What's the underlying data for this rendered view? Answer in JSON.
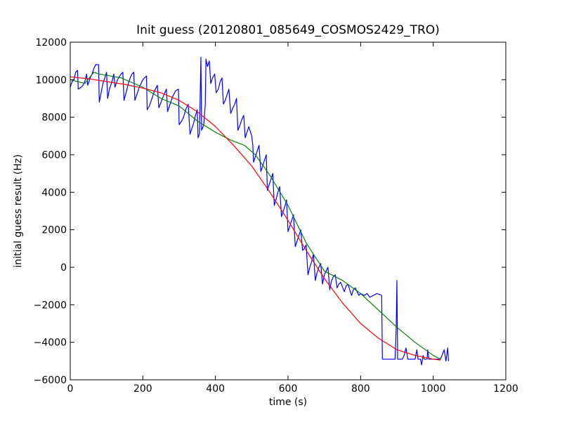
{
  "chart_data": {
    "type": "line",
    "title": "Init guess (20120801_085649_COSMOS2429_TRO)",
    "xlabel": "time (s)",
    "ylabel": "initial guess result (Hz)",
    "xlim": [
      0,
      1200
    ],
    "ylim": [
      -6000,
      12000
    ],
    "xticks": [
      0,
      200,
      400,
      600,
      800,
      1000,
      1200
    ],
    "yticks": [
      -6000,
      -4000,
      -2000,
      0,
      2000,
      4000,
      6000,
      8000,
      10000,
      12000
    ],
    "grid": false,
    "colors": {
      "blue": "#0000ff",
      "green": "#008000",
      "red": "#ff0000"
    },
    "series": [
      {
        "color": "#0000ff",
        "points": [
          [
            0,
            9600
          ],
          [
            5,
            9900
          ],
          [
            10,
            10000
          ],
          [
            15,
            10400
          ],
          [
            20,
            10500
          ],
          [
            22,
            9500
          ],
          [
            30,
            9600
          ],
          [
            35,
            9700
          ],
          [
            40,
            9900
          ],
          [
            45,
            10300
          ],
          [
            48,
            9700
          ],
          [
            55,
            10100
          ],
          [
            60,
            10300
          ],
          [
            65,
            10600
          ],
          [
            70,
            10800
          ],
          [
            78,
            10800
          ],
          [
            80,
            8800
          ],
          [
            85,
            9300
          ],
          [
            90,
            9800
          ],
          [
            95,
            10100
          ],
          [
            100,
            10400
          ],
          [
            103,
            9000
          ],
          [
            108,
            9500
          ],
          [
            115,
            9900
          ],
          [
            120,
            10300
          ],
          [
            123,
            9600
          ],
          [
            130,
            10000
          ],
          [
            140,
            10300
          ],
          [
            145,
            10400
          ],
          [
            148,
            8900
          ],
          [
            155,
            9400
          ],
          [
            160,
            9800
          ],
          [
            165,
            10100
          ],
          [
            170,
            10300
          ],
          [
            175,
            10400
          ],
          [
            178,
            8900
          ],
          [
            185,
            9300
          ],
          [
            190,
            9600
          ],
          [
            195,
            9800
          ],
          [
            200,
            10000
          ],
          [
            210,
            10200
          ],
          [
            212,
            8400
          ],
          [
            218,
            8600
          ],
          [
            225,
            9000
          ],
          [
            232,
            9400
          ],
          [
            240,
            9700
          ],
          [
            244,
            8500
          ],
          [
            250,
            8800
          ],
          [
            258,
            9200
          ],
          [
            265,
            9500
          ],
          [
            268,
            8300
          ],
          [
            275,
            8700
          ],
          [
            282,
            9100
          ],
          [
            290,
            9400
          ],
          [
            298,
            9500
          ],
          [
            300,
            7600
          ],
          [
            307,
            7800
          ],
          [
            312,
            8000
          ],
          [
            318,
            8400
          ],
          [
            325,
            8700
          ],
          [
            330,
            7100
          ],
          [
            335,
            7400
          ],
          [
            340,
            7700
          ],
          [
            345,
            8100
          ],
          [
            350,
            8400
          ],
          [
            352,
            6900
          ],
          [
            356,
            7100
          ],
          [
            360,
            11200
          ],
          [
            362,
            7300
          ],
          [
            368,
            7600
          ],
          [
            372,
            8700
          ],
          [
            374,
            11100
          ],
          [
            378,
            10700
          ],
          [
            383,
            11000
          ],
          [
            387,
            9800
          ],
          [
            392,
            10100
          ],
          [
            398,
            10300
          ],
          [
            402,
            9300
          ],
          [
            408,
            9500
          ],
          [
            413,
            9900
          ],
          [
            418,
            10100
          ],
          [
            422,
            8700
          ],
          [
            427,
            8900
          ],
          [
            432,
            9200
          ],
          [
            437,
            9500
          ],
          [
            442,
            8200
          ],
          [
            448,
            8500
          ],
          [
            453,
            8700
          ],
          [
            458,
            9000
          ],
          [
            462,
            7300
          ],
          [
            468,
            7600
          ],
          [
            473,
            7900
          ],
          [
            478,
            8100
          ],
          [
            482,
            6900
          ],
          [
            487,
            7200
          ],
          [
            492,
            7500
          ],
          [
            500,
            7000
          ],
          [
            503,
            6500
          ],
          [
            505,
            5600
          ],
          [
            510,
            5900
          ],
          [
            515,
            6200
          ],
          [
            520,
            6500
          ],
          [
            525,
            5100
          ],
          [
            530,
            5400
          ],
          [
            535,
            5700
          ],
          [
            540,
            6000
          ],
          [
            543,
            4100
          ],
          [
            548,
            4400
          ],
          [
            553,
            4700
          ],
          [
            558,
            5000
          ],
          [
            562,
            3300
          ],
          [
            567,
            3600
          ],
          [
            572,
            4000
          ],
          [
            577,
            4300
          ],
          [
            582,
            2700
          ],
          [
            587,
            3000
          ],
          [
            592,
            3300
          ],
          [
            596,
            3600
          ],
          [
            600,
            1900
          ],
          [
            605,
            2200
          ],
          [
            610,
            2500
          ],
          [
            615,
            2800
          ],
          [
            620,
            1100
          ],
          [
            625,
            1400
          ],
          [
            630,
            1700
          ],
          [
            635,
            2000
          ],
          [
            640,
            900
          ],
          [
            645,
            1000
          ],
          [
            650,
            1200
          ],
          [
            655,
            -400
          ],
          [
            660,
            0
          ],
          [
            665,
            300
          ],
          [
            670,
            700
          ],
          [
            675,
            -700
          ],
          [
            680,
            -300
          ],
          [
            685,
            0
          ],
          [
            690,
            200
          ],
          [
            695,
            -900
          ],
          [
            700,
            -400
          ],
          [
            705,
            -200
          ],
          [
            710,
            0
          ],
          [
            715,
            -1200
          ],
          [
            720,
            -700
          ],
          [
            725,
            -500
          ],
          [
            730,
            -400
          ],
          [
            735,
            -1100
          ],
          [
            740,
            -900
          ],
          [
            745,
            -800
          ],
          [
            755,
            -1300
          ],
          [
            760,
            -1000
          ],
          [
            765,
            -900
          ],
          [
            775,
            -1500
          ],
          [
            780,
            -1200
          ],
          [
            785,
            -1100
          ],
          [
            795,
            -1500
          ],
          [
            800,
            -1400
          ],
          [
            810,
            -1500
          ],
          [
            818,
            -1400
          ],
          [
            825,
            -1600
          ],
          [
            835,
            -1500
          ],
          [
            845,
            -1400
          ],
          [
            858,
            -1500
          ],
          [
            860,
            -4900
          ],
          [
            880,
            -4900
          ],
          [
            895,
            -4900
          ],
          [
            898,
            -3200
          ],
          [
            900,
            -700
          ],
          [
            902,
            -4900
          ],
          [
            915,
            -4900
          ],
          [
            920,
            -4700
          ],
          [
            925,
            -4300
          ],
          [
            930,
            -4900
          ],
          [
            950,
            -4900
          ],
          [
            955,
            -4400
          ],
          [
            958,
            -4900
          ],
          [
            965,
            -4900
          ],
          [
            968,
            -5200
          ],
          [
            972,
            -4700
          ],
          [
            975,
            -4900
          ],
          [
            983,
            -4900
          ],
          [
            985,
            -4400
          ],
          [
            988,
            -4900
          ],
          [
            995,
            -4900
          ],
          [
            1000,
            -4900
          ],
          [
            1010,
            -4900
          ],
          [
            1020,
            -4900
          ],
          [
            1030,
            -4400
          ],
          [
            1035,
            -5000
          ],
          [
            1040,
            -4300
          ],
          [
            1042,
            -5000
          ]
        ]
      },
      {
        "color": "#008000",
        "points": [
          [
            0,
            10000
          ],
          [
            20,
            9900
          ],
          [
            40,
            9800
          ],
          [
            65,
            10400
          ],
          [
            80,
            10300
          ],
          [
            140,
            10100
          ],
          [
            200,
            9600
          ],
          [
            250,
            9000
          ],
          [
            300,
            8600
          ],
          [
            350,
            7800
          ],
          [
            400,
            7200
          ],
          [
            440,
            6800
          ],
          [
            480,
            6500
          ],
          [
            510,
            6000
          ],
          [
            550,
            4900
          ],
          [
            600,
            3300
          ],
          [
            650,
            1300
          ],
          [
            700,
            -200
          ],
          [
            750,
            -700
          ],
          [
            800,
            -1400
          ],
          [
            850,
            -2300
          ],
          [
            900,
            -3200
          ],
          [
            950,
            -4000
          ],
          [
            1000,
            -4700
          ],
          [
            1020,
            -4900
          ]
        ]
      },
      {
        "color": "#ff0000",
        "points": [
          [
            0,
            10150
          ],
          [
            50,
            10050
          ],
          [
            100,
            9900
          ],
          [
            150,
            9750
          ],
          [
            200,
            9550
          ],
          [
            250,
            9300
          ],
          [
            300,
            8900
          ],
          [
            350,
            8300
          ],
          [
            400,
            7500
          ],
          [
            450,
            6500
          ],
          [
            500,
            5400
          ],
          [
            550,
            4000
          ],
          [
            600,
            2500
          ],
          [
            650,
            900
          ],
          [
            700,
            -600
          ],
          [
            750,
            -1900
          ],
          [
            800,
            -3000
          ],
          [
            850,
            -3800
          ],
          [
            900,
            -4400
          ],
          [
            950,
            -4700
          ],
          [
            1000,
            -4900
          ],
          [
            1020,
            -4950
          ]
        ]
      }
    ]
  }
}
